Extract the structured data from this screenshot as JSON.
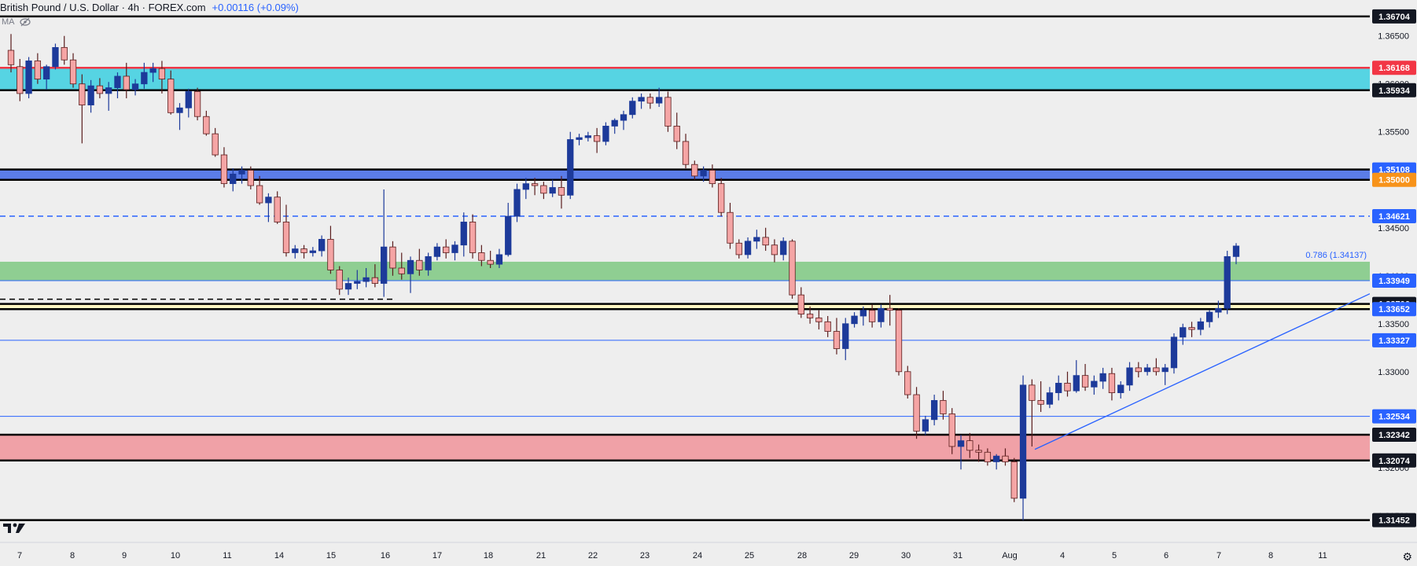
{
  "header": {
    "title": "British Pound / U.S. Dollar · 4h · FOREX.com",
    "change": "+0.00116 (+0.09%)"
  },
  "indicator": {
    "label": "MA",
    "eye_icon": "eye-crossed-icon"
  },
  "x_labels": [
    "7",
    "8",
    "9",
    "10",
    "11",
    "14",
    "15",
    "16",
    "17",
    "18",
    "21",
    "22",
    "23",
    "24",
    "25",
    "28",
    "29",
    "30",
    "31",
    "Aug",
    "4",
    "5",
    "6",
    "7",
    "8",
    "11"
  ],
  "y_ticks": [
    "1.36500",
    "1.36000",
    "1.35500",
    "1.35000",
    "1.34500",
    "1.34000",
    "1.33500",
    "1.33000",
    "1.32500",
    "1.32000",
    "1.31500"
  ],
  "fib_label": "0.786 (1.34137)",
  "settings_icon": "gear-icon",
  "logo": "tradingview-logo",
  "chart_data": {
    "type": "candlestick",
    "symbol": "GBPUSD",
    "timeframe": "4h",
    "y_range": [
      1.314,
      1.3676
    ],
    "x_axis_labels": [
      "7",
      "8",
      "9",
      "10",
      "11",
      "14",
      "15",
      "16",
      "17",
      "18",
      "21",
      "22",
      "23",
      "24",
      "25",
      "28",
      "29",
      "30",
      "31",
      "Aug",
      "4",
      "5",
      "6",
      "7",
      "8",
      "11"
    ],
    "colors": {
      "up": "#1d3a9a",
      "down": "#f5a5a5",
      "down_border": "#5a1d1d"
    },
    "price_levels": [
      {
        "price": "1.36704",
        "value": 1.36704,
        "color": "#000000",
        "label_bg": "#131722",
        "style": "solid"
      },
      {
        "price": "1.36168",
        "value": 1.36168,
        "color": "#f23645",
        "label_bg": "#f23645",
        "style": "solid"
      },
      {
        "price": "1.35934",
        "value": 1.35934,
        "color": "#000000",
        "label_bg": "#131722",
        "style": "solid"
      },
      {
        "price": "1.35108",
        "value": 1.35108,
        "color": "#000000",
        "label_bg": "#2962ff",
        "style": "solid"
      },
      {
        "price": "1.35000",
        "value": 1.35,
        "color": "#000000",
        "label_bg": "#f7931a",
        "style": "solid"
      },
      {
        "price": "1.34621",
        "value": 1.34621,
        "color": "#2962ff",
        "label_bg": "#2962ff",
        "style": "dashed"
      },
      {
        "price": "1.33949",
        "value": 1.33949,
        "color": "#2962ff",
        "label_bg": "#2962ff",
        "style": "thin"
      },
      {
        "price": "1.33706",
        "value": 1.33706,
        "color": "#000000",
        "label_bg": "#131722",
        "style": "solid"
      },
      {
        "price": "1.33652",
        "value": 1.33652,
        "color": "#000000",
        "label_bg": "#2962ff",
        "style": "solid"
      },
      {
        "price": "1.33327",
        "value": 1.33327,
        "color": "#2962ff",
        "label_bg": "#2962ff",
        "style": "thin"
      },
      {
        "price": "1.32534",
        "value": 1.32534,
        "color": "#2962ff",
        "label_bg": "#2962ff",
        "style": "thin"
      },
      {
        "price": "1.32342",
        "value": 1.32342,
        "color": "#000000",
        "label_bg": "#131722",
        "style": "solid"
      },
      {
        "price": "1.32074",
        "value": 1.32074,
        "color": "#000000",
        "label_bg": "#131722",
        "style": "solid"
      },
      {
        "price": "1.31452",
        "value": 1.31452,
        "color": "#000000",
        "label_bg": "#131722",
        "style": "solid"
      }
    ],
    "zones": [
      {
        "from": 1.35934,
        "to": 1.36168,
        "color": "#56d4e3"
      },
      {
        "from": 1.35,
        "to": 1.35108,
        "color": "#5b7de8"
      },
      {
        "from": 1.33949,
        "to": 1.34146,
        "color": "#8fce92"
      },
      {
        "from": 1.33652,
        "to": 1.33706,
        "color": "#fff7c2"
      },
      {
        "from": 1.32074,
        "to": 1.32342,
        "color": "#f0a1a7"
      }
    ],
    "candles": [
      [
        1.3635,
        1.3652,
        1.3612,
        1.362
      ],
      [
        1.3618,
        1.3626,
        1.3582,
        1.359
      ],
      [
        1.359,
        1.3628,
        1.3585,
        1.3624
      ],
      [
        1.3624,
        1.3632,
        1.36,
        1.3605
      ],
      [
        1.3605,
        1.362,
        1.3594,
        1.3618
      ],
      [
        1.3618,
        1.3642,
        1.3615,
        1.3638
      ],
      [
        1.3638,
        1.365,
        1.362,
        1.3625
      ],
      [
        1.3625,
        1.3632,
        1.3596,
        1.36
      ],
      [
        1.36,
        1.361,
        1.3538,
        1.3578
      ],
      [
        1.3578,
        1.3604,
        1.357,
        1.3598
      ],
      [
        1.3598,
        1.3606,
        1.3585,
        1.359
      ],
      [
        1.359,
        1.3602,
        1.3572,
        1.3596
      ],
      [
        1.3596,
        1.3612,
        1.3585,
        1.3608
      ],
      [
        1.3608,
        1.3622,
        1.3585,
        1.3594
      ],
      [
        1.3594,
        1.3605,
        1.3588,
        1.36
      ],
      [
        1.36,
        1.3622,
        1.3595,
        1.3612
      ],
      [
        1.3612,
        1.3622,
        1.3602,
        1.3616
      ],
      [
        1.3616,
        1.3624,
        1.359,
        1.3605
      ],
      [
        1.3605,
        1.3614,
        1.3568,
        1.357
      ],
      [
        1.357,
        1.358,
        1.3552,
        1.3575
      ],
      [
        1.3575,
        1.3595,
        1.3565,
        1.3592
      ],
      [
        1.3592,
        1.3596,
        1.3562,
        1.3566
      ],
      [
        1.3566,
        1.3572,
        1.3546,
        1.3548
      ],
      [
        1.3548,
        1.3554,
        1.3524,
        1.3526
      ],
      [
        1.3526,
        1.3534,
        1.3492,
        1.3496
      ],
      [
        1.3496,
        1.3512,
        1.3488,
        1.3506
      ],
      [
        1.3506,
        1.3514,
        1.3496,
        1.351
      ],
      [
        1.351,
        1.3514,
        1.349,
        1.3494
      ],
      [
        1.3494,
        1.3504,
        1.3474,
        1.3476
      ],
      [
        1.3476,
        1.3486,
        1.3456,
        1.3482
      ],
      [
        1.3482,
        1.3488,
        1.3454,
        1.3456
      ],
      [
        1.3456,
        1.3474,
        1.342,
        1.3424
      ],
      [
        1.3424,
        1.3432,
        1.3418,
        1.3428
      ],
      [
        1.3428,
        1.3432,
        1.3418,
        1.3424
      ],
      [
        1.3424,
        1.343,
        1.342,
        1.3426
      ],
      [
        1.3426,
        1.3442,
        1.342,
        1.3438
      ],
      [
        1.3438,
        1.3452,
        1.3402,
        1.3406
      ],
      [
        1.3406,
        1.341,
        1.338,
        1.3386
      ],
      [
        1.3386,
        1.3398,
        1.338,
        1.3392
      ],
      [
        1.3392,
        1.3406,
        1.3386,
        1.3394
      ],
      [
        1.3394,
        1.3408,
        1.3388,
        1.3398
      ],
      [
        1.3398,
        1.3412,
        1.3388,
        1.3392
      ],
      [
        1.3392,
        1.349,
        1.3378,
        1.343
      ],
      [
        1.343,
        1.3436,
        1.34,
        1.3408
      ],
      [
        1.3408,
        1.3424,
        1.3396,
        1.3402
      ],
      [
        1.3402,
        1.342,
        1.3382,
        1.3416
      ],
      [
        1.3416,
        1.3428,
        1.34,
        1.3406
      ],
      [
        1.3406,
        1.3424,
        1.34,
        1.342
      ],
      [
        1.342,
        1.3434,
        1.3416,
        1.343
      ],
      [
        1.343,
        1.3438,
        1.3418,
        1.3424
      ],
      [
        1.3424,
        1.3436,
        1.3416,
        1.3432
      ],
      [
        1.3432,
        1.3466,
        1.342,
        1.3456
      ],
      [
        1.3456,
        1.3464,
        1.3418,
        1.3424
      ],
      [
        1.3424,
        1.3432,
        1.341,
        1.3416
      ],
      [
        1.3416,
        1.3426,
        1.3408,
        1.3412
      ],
      [
        1.3412,
        1.3428,
        1.3408,
        1.3422
      ],
      [
        1.3422,
        1.3476,
        1.342,
        1.3462
      ],
      [
        1.3462,
        1.3496,
        1.3456,
        1.349
      ],
      [
        1.349,
        1.3502,
        1.348,
        1.3496
      ],
      [
        1.3496,
        1.3502,
        1.3484,
        1.3494
      ],
      [
        1.3494,
        1.3498,
        1.348,
        1.3486
      ],
      [
        1.3486,
        1.35,
        1.3482,
        1.3492
      ],
      [
        1.3492,
        1.3504,
        1.347,
        1.3484
      ],
      [
        1.3484,
        1.355,
        1.348,
        1.3542
      ],
      [
        1.3542,
        1.3548,
        1.3536,
        1.3544
      ],
      [
        1.3544,
        1.355,
        1.354,
        1.3546
      ],
      [
        1.3546,
        1.3554,
        1.3528,
        1.354
      ],
      [
        1.354,
        1.356,
        1.3536,
        1.3556
      ],
      [
        1.3556,
        1.3564,
        1.3548,
        1.3562
      ],
      [
        1.3562,
        1.3572,
        1.3552,
        1.3568
      ],
      [
        1.3568,
        1.3586,
        1.3564,
        1.3582
      ],
      [
        1.3582,
        1.359,
        1.3574,
        1.3586
      ],
      [
        1.3586,
        1.359,
        1.3574,
        1.358
      ],
      [
        1.358,
        1.3596,
        1.3576,
        1.3586
      ],
      [
        1.3586,
        1.3592,
        1.355,
        1.3556
      ],
      [
        1.3556,
        1.357,
        1.3532,
        1.354
      ],
      [
        1.354,
        1.3548,
        1.3512,
        1.3516
      ],
      [
        1.3516,
        1.352,
        1.35,
        1.3504
      ],
      [
        1.3504,
        1.3514,
        1.3498,
        1.351
      ],
      [
        1.351,
        1.3516,
        1.3492,
        1.3496
      ],
      [
        1.3496,
        1.3502,
        1.3462,
        1.3466
      ],
      [
        1.3466,
        1.3476,
        1.3428,
        1.3434
      ],
      [
        1.3434,
        1.3438,
        1.3418,
        1.3422
      ],
      [
        1.3422,
        1.344,
        1.3418,
        1.3436
      ],
      [
        1.3436,
        1.3448,
        1.3428,
        1.344
      ],
      [
        1.344,
        1.345,
        1.3426,
        1.3432
      ],
      [
        1.3432,
        1.3438,
        1.3414,
        1.3422
      ],
      [
        1.3422,
        1.344,
        1.3416,
        1.3436
      ],
      [
        1.3436,
        1.3438,
        1.3376,
        1.338
      ],
      [
        1.338,
        1.3388,
        1.3356,
        1.336
      ],
      [
        1.336,
        1.3368,
        1.335,
        1.3356
      ],
      [
        1.3356,
        1.3364,
        1.3344,
        1.3352
      ],
      [
        1.3352,
        1.3358,
        1.3336,
        1.3342
      ],
      [
        1.3342,
        1.3356,
        1.3318,
        1.3324
      ],
      [
        1.3324,
        1.3356,
        1.3312,
        1.335
      ],
      [
        1.335,
        1.3362,
        1.3346,
        1.3358
      ],
      [
        1.3358,
        1.3368,
        1.3348,
        1.3364
      ],
      [
        1.3364,
        1.337,
        1.3346,
        1.3352
      ],
      [
        1.3352,
        1.337,
        1.3346,
        1.3366
      ],
      [
        1.3366,
        1.338,
        1.3348,
        1.3364
      ],
      [
        1.3364,
        1.3366,
        1.3296,
        1.33
      ],
      [
        1.33,
        1.3306,
        1.3272,
        1.3276
      ],
      [
        1.3276,
        1.3284,
        1.323,
        1.3238
      ],
      [
        1.3238,
        1.3254,
        1.3234,
        1.325
      ],
      [
        1.325,
        1.3276,
        1.3244,
        1.327
      ],
      [
        1.327,
        1.328,
        1.325,
        1.3256
      ],
      [
        1.3256,
        1.3262,
        1.3214,
        1.3222
      ],
      [
        1.3222,
        1.3234,
        1.3198,
        1.3228
      ],
      [
        1.3228,
        1.3236,
        1.321,
        1.3218
      ],
      [
        1.3218,
        1.3224,
        1.3206,
        1.3216
      ],
      [
        1.3216,
        1.322,
        1.3202,
        1.3206
      ],
      [
        1.3206,
        1.3214,
        1.3198,
        1.3212
      ],
      [
        1.3212,
        1.322,
        1.3202,
        1.3206
      ],
      [
        1.3206,
        1.321,
        1.3164,
        1.3168
      ],
      [
        1.3168,
        1.3296,
        1.3145,
        1.3286
      ],
      [
        1.3286,
        1.3292,
        1.3222,
        1.327
      ],
      [
        1.327,
        1.329,
        1.3258,
        1.3266
      ],
      [
        1.3266,
        1.3284,
        1.3262,
        1.3278
      ],
      [
        1.3278,
        1.3296,
        1.327,
        1.3288
      ],
      [
        1.3288,
        1.33,
        1.3274,
        1.328
      ],
      [
        1.328,
        1.3312,
        1.3278,
        1.3296
      ],
      [
        1.3296,
        1.3308,
        1.328,
        1.3284
      ],
      [
        1.3284,
        1.3296,
        1.3276,
        1.329
      ],
      [
        1.329,
        1.3304,
        1.3282,
        1.3298
      ],
      [
        1.3298,
        1.3304,
        1.327,
        1.3278
      ],
      [
        1.3278,
        1.329,
        1.3272,
        1.3286
      ],
      [
        1.3286,
        1.331,
        1.328,
        1.3304
      ],
      [
        1.3304,
        1.331,
        1.3294,
        1.33
      ],
      [
        1.33,
        1.3308,
        1.3296,
        1.3304
      ],
      [
        1.3304,
        1.3314,
        1.3296,
        1.33
      ],
      [
        1.33,
        1.3308,
        1.3286,
        1.3304
      ],
      [
        1.3304,
        1.334,
        1.3298,
        1.3336
      ],
      [
        1.3336,
        1.335,
        1.3328,
        1.3346
      ],
      [
        1.3346,
        1.3352,
        1.3336,
        1.3344
      ],
      [
        1.3344,
        1.3356,
        1.3338,
        1.3352
      ],
      [
        1.3352,
        1.3364,
        1.3346,
        1.3362
      ],
      [
        1.3362,
        1.3374,
        1.3356,
        1.3366
      ],
      [
        1.3366,
        1.3426,
        1.336,
        1.342
      ],
      [
        1.342,
        1.3434,
        1.3412,
        1.3431
      ]
    ]
  }
}
